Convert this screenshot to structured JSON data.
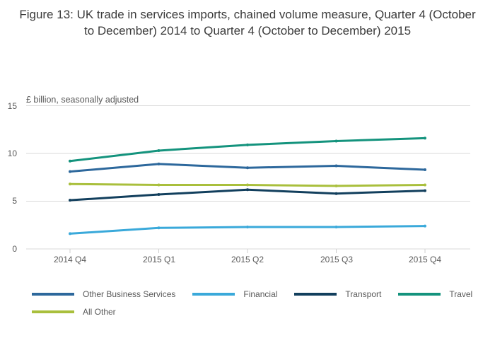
{
  "title": "Figure 13: UK trade in services imports, chained volume measure, Quarter 4 (October to December) 2014 to Quarter 4 (October to December) 2015",
  "chart_data": {
    "type": "line",
    "title": "Figure 13: UK trade in services imports, chained volume measure, Quarter 4 (October to December) 2014 to Quarter 4 (October to December) 2015",
    "unit_label": "£ billion, seasonally adjusted",
    "categories": [
      "2014 Q4",
      "2015 Q1",
      "2015 Q2",
      "2015 Q3",
      "2015 Q4"
    ],
    "series": [
      {
        "name": "Other Business Services",
        "color": "#2d689c",
        "values": [
          8.1,
          8.9,
          8.5,
          8.7,
          8.3
        ]
      },
      {
        "name": "Financial",
        "color": "#3aa9da",
        "values": [
          1.6,
          2.2,
          2.3,
          2.3,
          2.4
        ]
      },
      {
        "name": "Transport",
        "color": "#123f5d",
        "values": [
          5.1,
          5.7,
          6.2,
          5.8,
          6.1
        ]
      },
      {
        "name": "Travel",
        "color": "#14937d",
        "values": [
          9.2,
          10.3,
          10.9,
          11.3,
          11.6
        ]
      },
      {
        "name": "All Other",
        "color": "#a9bf3c",
        "values": [
          6.8,
          6.7,
          6.7,
          6.6,
          6.7
        ]
      }
    ],
    "yticks": [
      0,
      5,
      10,
      15
    ],
    "ylim": [
      0,
      15
    ],
    "xlabel": "",
    "ylabel": "£ billion, seasonally adjusted",
    "grid": "horizontal",
    "legend_position": "bottom",
    "colors": {
      "gridline": "#d9d9d9",
      "tick_text": "#595959",
      "title_text": "#3b3b3b"
    }
  }
}
